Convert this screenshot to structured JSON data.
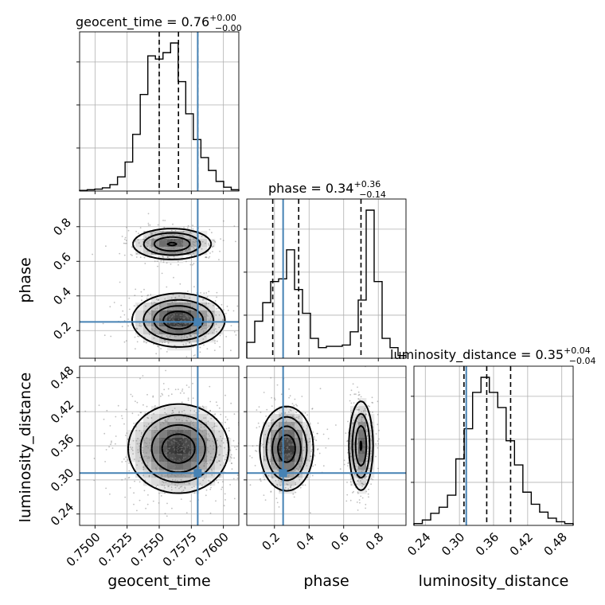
{
  "chart_data": {
    "type": "corner",
    "truth_color": "#4682b4",
    "parameters": [
      {
        "name": "geocent_time",
        "label": "geocent_time",
        "median": "0.76",
        "err_plus": "+0.00",
        "err_minus": "−0.00",
        "range": [
          0.7488,
          0.7612
        ],
        "ticks": [
          0.75,
          0.7525,
          0.755,
          0.7575,
          0.76
        ],
        "tick_labels": [
          "0.7500",
          "0.7525",
          "0.7550",
          "0.7575",
          "0.7600"
        ],
        "quantiles": [
          0.755,
          0.7565,
          0.758
        ],
        "truth": 0.758,
        "hist": [
          1,
          2,
          3,
          5,
          10,
          22,
          45,
          88,
          150,
          210,
          205,
          215,
          230,
          170,
          120,
          80,
          52,
          32,
          15,
          6,
          2
        ]
      },
      {
        "name": "phase",
        "label": "phase",
        "median": "0.34",
        "err_plus": "+0.36",
        "err_minus": "−0.14",
        "range": [
          0.04,
          0.96
        ],
        "ticks": [
          0.2,
          0.4,
          0.6,
          0.8
        ],
        "tick_labels": [
          "0.2",
          "0.4",
          "0.6",
          "0.8"
        ],
        "quantiles": [
          0.19,
          0.34,
          0.7
        ],
        "truth": 0.25,
        "hist": [
          12,
          28,
          42,
          58,
          60,
          82,
          52,
          34,
          15,
          8,
          9,
          9,
          10,
          20,
          44,
          112,
          58,
          15,
          8,
          2
        ]
      },
      {
        "name": "luminosity_distance",
        "label": "luminosity_distance",
        "median": "0.35",
        "err_plus": "+0.04",
        "err_minus": "−0.04",
        "range": [
          0.22,
          0.5
        ],
        "ticks": [
          0.24,
          0.3,
          0.36,
          0.42,
          0.48
        ],
        "tick_labels": [
          "0.24",
          "0.30",
          "0.36",
          "0.42",
          "0.48"
        ],
        "quantiles": [
          0.308,
          0.348,
          0.39
        ],
        "truth": 0.312,
        "hist": [
          3,
          9,
          20,
          30,
          50,
          110,
          160,
          220,
          245,
          220,
          195,
          140,
          100,
          55,
          35,
          22,
          12,
          6,
          3
        ]
      }
    ],
    "pairs": [
      {
        "x": "geocent_time",
        "y": "phase",
        "modes": [
          {
            "center": [
              0.756,
              0.7
            ],
            "spread": [
              0.00155,
              0.045
            ],
            "weight": 0.45
          },
          {
            "center": [
              0.7565,
              0.26
            ],
            "spread": [
              0.00175,
              0.075
            ],
            "weight": 0.55
          }
        ]
      },
      {
        "x": "geocent_time",
        "y": "luminosity_distance",
        "modes": [
          {
            "center": [
              0.7565,
              0.355
            ],
            "spread": [
              0.0019,
              0.038
            ],
            "weight": 1.0
          }
        ]
      },
      {
        "x": "phase",
        "y": "luminosity_distance",
        "modes": [
          {
            "center": [
              0.27,
              0.355
            ],
            "spread": [
              0.075,
              0.036
            ],
            "weight": 0.55
          },
          {
            "center": [
              0.7,
              0.36
            ],
            "spread": [
              0.035,
              0.04
            ],
            "weight": 0.45
          }
        ]
      }
    ]
  }
}
